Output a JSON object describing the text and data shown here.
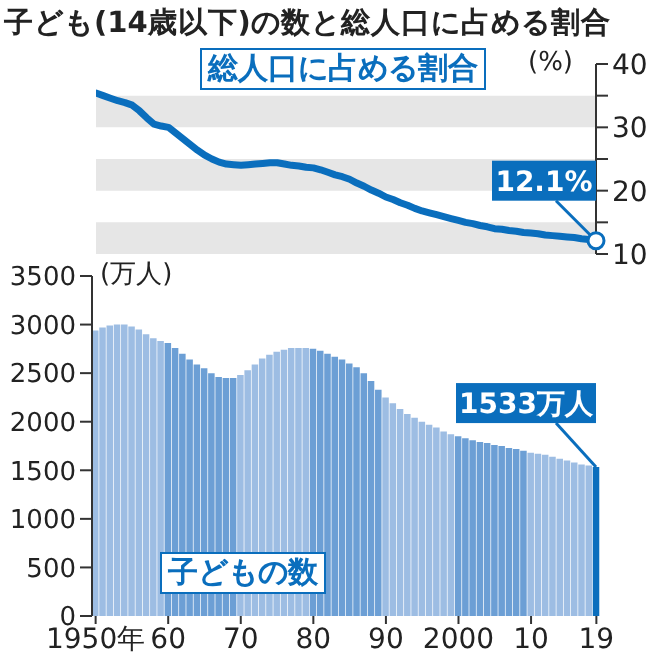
{
  "chart_data": [
    {
      "type": "line",
      "title": "子ども(14歳以下)の数と総人口に占める割合",
      "ylabel": "(%)",
      "categories": [
        null,
        null,
        null,
        null,
        null,
        null,
        null,
        null,
        null,
        null,
        null,
        null,
        null,
        null,
        null,
        null,
        null,
        null,
        null,
        null,
        null,
        null,
        null,
        null,
        null,
        null,
        null,
        null,
        null,
        null,
        null,
        null,
        null,
        null,
        null,
        null,
        null,
        null,
        null,
        null,
        null,
        null,
        null,
        null,
        null,
        null,
        null,
        null,
        null,
        null,
        null,
        null,
        null,
        null,
        null,
        null,
        null,
        null,
        null,
        null,
        null,
        null,
        null,
        null,
        null,
        null,
        null,
        null,
        null,
        null
      ],
      "series": [
        {
          "name": "総人口に占める割合",
          "color": "#0a6ebd",
          "values": [
            35.4,
            35.0,
            34.6,
            34.2,
            33.9,
            33.5,
            32.6,
            31.5,
            30.5,
            30.2,
            30.0,
            29.1,
            28.2,
            27.3,
            26.4,
            25.6,
            25.0,
            24.5,
            24.2,
            24.1,
            24.0,
            24.1,
            24.2,
            24.3,
            24.4,
            24.4,
            24.2,
            24.0,
            23.9,
            23.7,
            23.6,
            23.3,
            22.9,
            22.5,
            22.2,
            21.8,
            21.2,
            20.7,
            20.1,
            19.6,
            19.0,
            18.6,
            18.1,
            17.7,
            17.2,
            16.8,
            16.5,
            16.2,
            15.9,
            15.6,
            15.3,
            15.0,
            14.8,
            14.5,
            14.3,
            14.0,
            13.9,
            13.7,
            13.6,
            13.4,
            13.3,
            13.2,
            13.0,
            12.9,
            12.8,
            12.7,
            12.6,
            12.4,
            12.3,
            12.1
          ],
          "value_labels": [
            null,
            null,
            null,
            null,
            null,
            null,
            null,
            null,
            null,
            null,
            null,
            null,
            null,
            null,
            null,
            null,
            null,
            null,
            null,
            null,
            null,
            null,
            null,
            null,
            null,
            null,
            null,
            null,
            null,
            null,
            null,
            null,
            null,
            null,
            null,
            null,
            null,
            null,
            null,
            null,
            null,
            null,
            null,
            null,
            null,
            null,
            null,
            null,
            null,
            null,
            null,
            null,
            null,
            null,
            null,
            null,
            null,
            null,
            null,
            null,
            null,
            null,
            null,
            null,
            null,
            null,
            null,
            null,
            null,
            "12.1%"
          ]
        }
      ],
      "ylim": [
        10,
        40
      ],
      "yticks": [
        10,
        {
          "value": 15,
          "label": null
        },
        20,
        {
          "value": 25,
          "label": null
        },
        30,
        {
          "value": 35,
          "label": null
        },
        40
      ],
      "bands": [
        {
          "axis": "y",
          "from": 10,
          "to": 15,
          "color": "#e6e6e6"
        },
        {
          "axis": "y",
          "from": 20,
          "to": 25,
          "color": "#e6e6e6"
        },
        {
          "axis": "y",
          "from": 30,
          "to": 35,
          "color": "#e6e6e6"
        }
      ],
      "tick_labels": "y",
      "marker": "none",
      "grid": false,
      "legend": false
    },
    {
      "type": "bar",
      "ylabel": "(万人)",
      "x": [
        1950,
        1951,
        1952,
        1953,
        1954,
        1955,
        1956,
        1957,
        1958,
        1959,
        1960,
        1961,
        1962,
        1963,
        1964,
        1965,
        1966,
        1967,
        1968,
        1969,
        1970,
        1971,
        1972,
        1973,
        1974,
        1975,
        1976,
        1977,
        1978,
        1979,
        1980,
        1981,
        1982,
        1983,
        1984,
        1985,
        1986,
        1987,
        1988,
        1989,
        1990,
        1991,
        1992,
        1993,
        1994,
        1995,
        1996,
        1997,
        1998,
        1999,
        2000,
        2001,
        2002,
        2003,
        2004,
        2005,
        2006,
        2007,
        2008,
        2009,
        2010,
        2011,
        2012,
        2013,
        2014,
        2015,
        2016,
        2017,
        2018,
        2019
      ],
      "series": [
        {
          "name": "子どもの数",
          "values": [
            2940,
            2970,
            2990,
            3000,
            3000,
            2980,
            2950,
            2900,
            2860,
            2830,
            2810,
            2760,
            2700,
            2640,
            2590,
            2550,
            2500,
            2460,
            2450,
            2450,
            2480,
            2530,
            2590,
            2650,
            2690,
            2720,
            2740,
            2760,
            2760,
            2760,
            2750,
            2730,
            2700,
            2670,
            2640,
            2600,
            2560,
            2500,
            2420,
            2330,
            2250,
            2190,
            2130,
            2080,
            2040,
            2000,
            1970,
            1940,
            1900,
            1870,
            1850,
            1830,
            1810,
            1790,
            1780,
            1760,
            1750,
            1730,
            1720,
            1700,
            1680,
            1670,
            1660,
            1640,
            1620,
            1600,
            1580,
            1560,
            1550,
            1533
          ],
          "value_labels": [
            null,
            null,
            null,
            null,
            null,
            null,
            null,
            null,
            null,
            null,
            null,
            null,
            null,
            null,
            null,
            null,
            null,
            null,
            null,
            null,
            null,
            null,
            null,
            null,
            null,
            null,
            null,
            null,
            null,
            null,
            null,
            null,
            null,
            null,
            null,
            null,
            null,
            null,
            null,
            null,
            null,
            null,
            null,
            null,
            null,
            null,
            null,
            null,
            null,
            null,
            null,
            null,
            null,
            null,
            null,
            null,
            null,
            null,
            null,
            null,
            null,
            null,
            null,
            null,
            null,
            null,
            null,
            null,
            null,
            "1533万人"
          ],
          "colors": [
            "#9dbde3",
            "#9dbde3",
            "#9dbde3",
            "#9dbde3",
            "#9dbde3",
            "#9dbde3",
            "#9dbde3",
            "#9dbde3",
            "#9dbde3",
            "#9dbde3",
            "#6c9fd5",
            "#6c9fd5",
            "#6c9fd5",
            "#6c9fd5",
            "#6c9fd5",
            "#6c9fd5",
            "#6c9fd5",
            "#6c9fd5",
            "#6c9fd5",
            "#6c9fd5",
            "#9dbde3",
            "#9dbde3",
            "#9dbde3",
            "#9dbde3",
            "#9dbde3",
            "#9dbde3",
            "#9dbde3",
            "#9dbde3",
            "#9dbde3",
            "#9dbde3",
            "#6c9fd5",
            "#6c9fd5",
            "#6c9fd5",
            "#6c9fd5",
            "#6c9fd5",
            "#6c9fd5",
            "#6c9fd5",
            "#6c9fd5",
            "#6c9fd5",
            "#6c9fd5",
            "#9dbde3",
            "#9dbde3",
            "#9dbde3",
            "#9dbde3",
            "#9dbde3",
            "#9dbde3",
            "#9dbde3",
            "#9dbde3",
            "#9dbde3",
            "#9dbde3",
            "#6c9fd5",
            "#6c9fd5",
            "#6c9fd5",
            "#6c9fd5",
            "#6c9fd5",
            "#6c9fd5",
            "#6c9fd5",
            "#6c9fd5",
            "#6c9fd5",
            "#6c9fd5",
            "#9dbde3",
            "#9dbde3",
            "#9dbde3",
            "#9dbde3",
            "#9dbde3",
            "#9dbde3",
            "#9dbde3",
            "#9dbde3",
            "#9dbde3",
            "#0a6ebd"
          ]
        }
      ],
      "xlim": [
        1949.5,
        2019.5
      ],
      "xticks": [
        {
          "value": 1950,
          "label": "1950年"
        },
        {
          "value": 1960,
          "label": "60"
        },
        {
          "value": 1970,
          "label": "70"
        },
        {
          "value": 1980,
          "label": "80"
        },
        {
          "value": 1990,
          "label": "90"
        },
        2000,
        {
          "value": 2010,
          "label": "10"
        },
        {
          "value": 2019,
          "label": "19"
        }
      ],
      "ylim": [
        0,
        3500
      ],
      "yticks": [
        0,
        500,
        1000,
        1500,
        2000,
        2500,
        3000,
        3500
      ],
      "grid": false,
      "legend": false
    }
  ]
}
